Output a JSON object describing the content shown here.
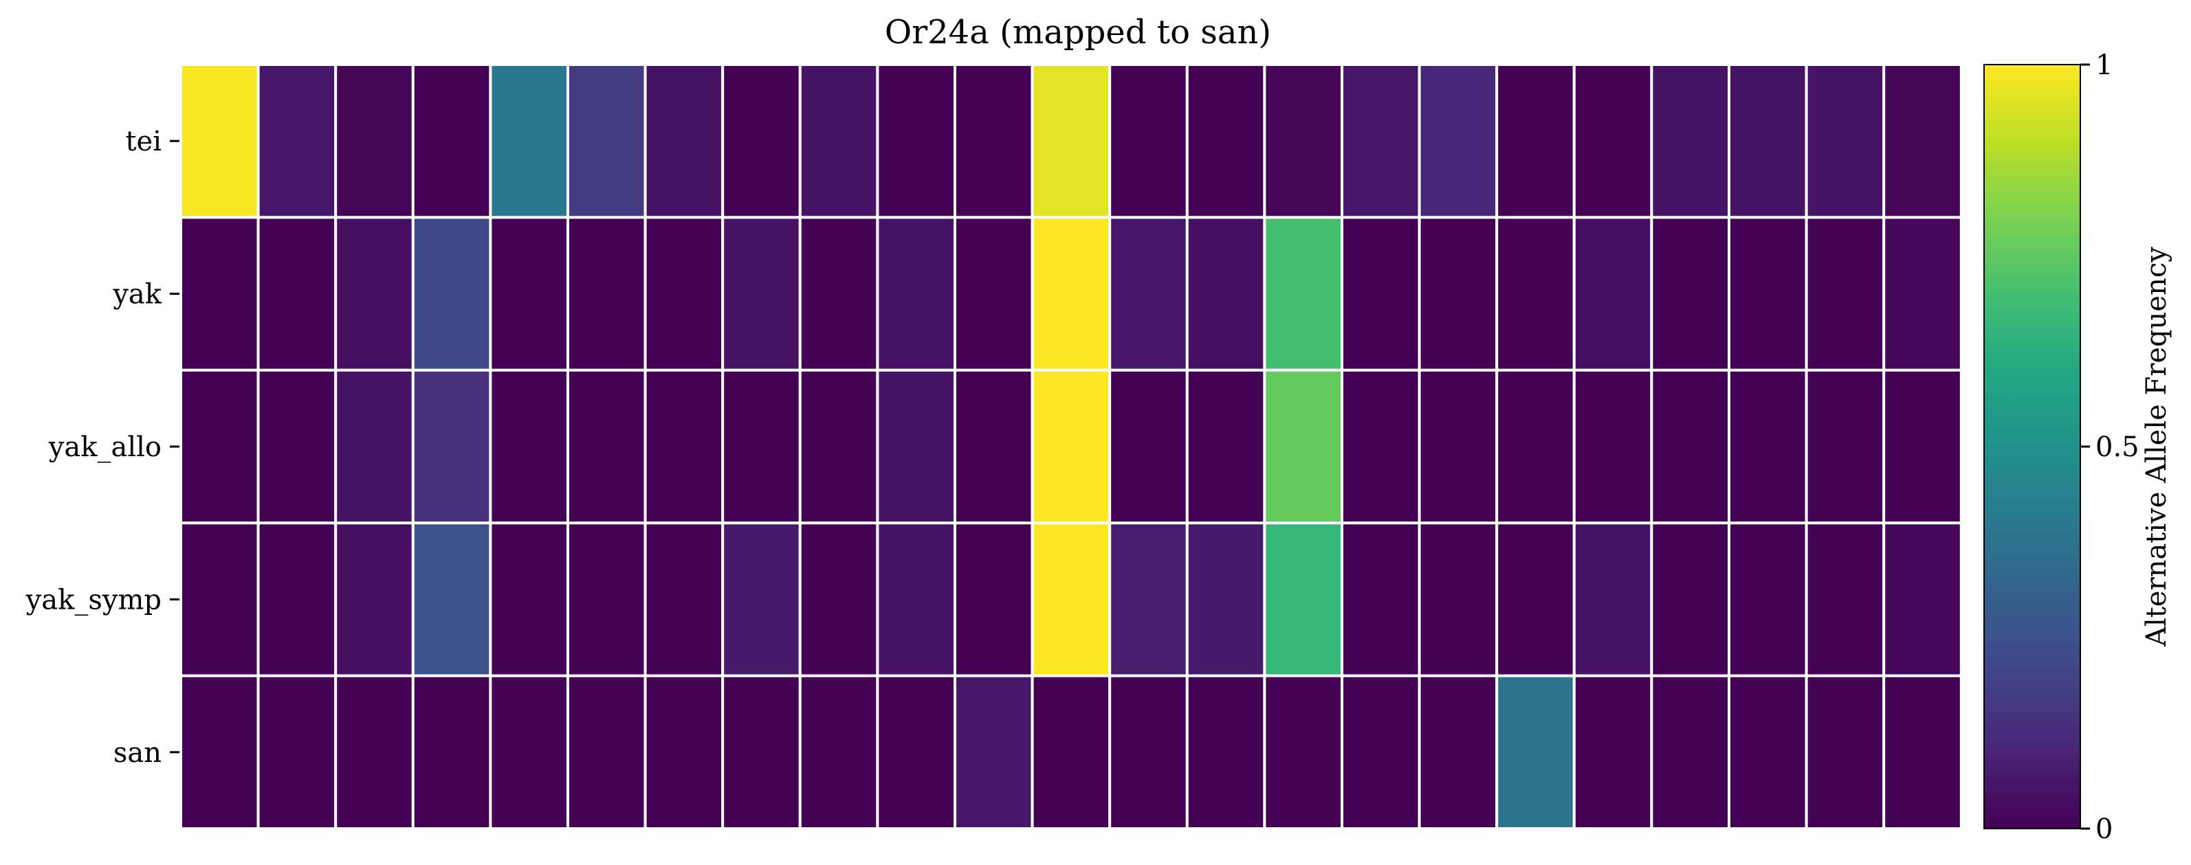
{
  "chart_data": {
    "type": "heatmap",
    "title": "Or24a (mapped to san)",
    "rows": [
      "tei",
      "yak",
      "yak_allo",
      "yak_symp",
      "san"
    ],
    "columns": 23,
    "values": [
      [
        0.99,
        0.06,
        0.01,
        0.0,
        0.4,
        0.17,
        0.05,
        0.0,
        0.05,
        0.0,
        0.0,
        0.96,
        0.0,
        0.0,
        0.01,
        0.06,
        0.11,
        0.0,
        0.0,
        0.05,
        0.05,
        0.05,
        0.01
      ],
      [
        0.0,
        0.0,
        0.04,
        0.22,
        0.0,
        0.0,
        0.0,
        0.05,
        0.0,
        0.05,
        0.0,
        1.0,
        0.06,
        0.04,
        0.7,
        0.0,
        0.0,
        0.0,
        0.04,
        0.0,
        0.0,
        0.0,
        0.02
      ],
      [
        0.0,
        0.0,
        0.05,
        0.14,
        0.0,
        0.0,
        0.0,
        0.0,
        0.0,
        0.05,
        0.0,
        1.0,
        0.0,
        0.0,
        0.76,
        0.0,
        0.0,
        0.0,
        0.0,
        0.0,
        0.0,
        0.0,
        0.0
      ],
      [
        0.0,
        0.0,
        0.04,
        0.25,
        0.0,
        0.0,
        0.0,
        0.07,
        0.0,
        0.05,
        0.0,
        1.0,
        0.08,
        0.07,
        0.66,
        0.0,
        0.0,
        0.0,
        0.05,
        0.0,
        0.0,
        0.0,
        0.02
      ],
      [
        0.0,
        0.0,
        0.0,
        0.0,
        0.0,
        0.0,
        0.0,
        0.0,
        0.0,
        0.0,
        0.06,
        0.0,
        0.0,
        0.0,
        0.0,
        0.0,
        0.0,
        0.38,
        0.0,
        0.0,
        0.0,
        0.0,
        0.0
      ]
    ],
    "colormap": "viridis",
    "colorbar": {
      "label": "Alternative Allele Frequency",
      "range": [
        0,
        1
      ],
      "ticks": [
        0,
        0.5,
        1
      ],
      "tick_labels": [
        "0",
        "0.5",
        "1"
      ]
    },
    "grid": true,
    "cell_border_color": "#ffffff"
  }
}
